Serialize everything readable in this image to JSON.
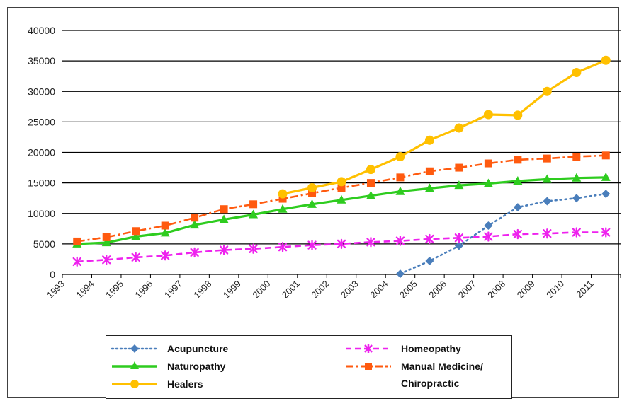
{
  "chart_data": {
    "type": "line",
    "title": "",
    "xlabel": "",
    "ylabel": "",
    "ylim": [
      0,
      40000
    ],
    "yticks": [
      "0",
      "5000",
      "10000",
      "15000",
      "20000",
      "25000",
      "30000",
      "35000",
      "40000"
    ],
    "categories": [
      "1993",
      "1994",
      "1995",
      "1996",
      "1997",
      "1998",
      "1999",
      "2000",
      "2001",
      "2002",
      "2003",
      "2004",
      "2005",
      "2006",
      "2007",
      "2008",
      "2009",
      "2010",
      "2011"
    ],
    "grid": "horizontal",
    "legend_position": "bottom",
    "series": [
      {
        "name": "Acupuncture",
        "color": "#4a7ebb",
        "dash": "dotted",
        "marker": "diamond",
        "values": [
          null,
          null,
          null,
          null,
          null,
          null,
          null,
          null,
          null,
          null,
          null,
          100,
          2200,
          4700,
          8000,
          11000,
          12000,
          12500,
          13200
        ]
      },
      {
        "name": "Naturopathy",
        "color": "#2ecc1f",
        "dash": "solid",
        "marker": "triangle",
        "values": [
          5000,
          5200,
          6200,
          6800,
          8100,
          9000,
          9800,
          10700,
          11500,
          12200,
          12900,
          13600,
          14100,
          14600,
          14900,
          15300,
          15600,
          15800,
          15900
        ]
      },
      {
        "name": "Healers",
        "color": "#ffc000",
        "dash": "solid",
        "marker": "circle",
        "values": [
          null,
          null,
          null,
          null,
          null,
          null,
          null,
          13200,
          14200,
          15200,
          17200,
          19300,
          22000,
          24000,
          26200,
          26100,
          30000,
          33100,
          35100
        ]
      },
      {
        "name": "Homeopathy",
        "color": "#ee22ee",
        "dash": "dashed",
        "marker": "star",
        "values": [
          2100,
          2400,
          2800,
          3100,
          3600,
          4000,
          4200,
          4500,
          4800,
          5000,
          5300,
          5500,
          5800,
          6000,
          6200,
          6600,
          6700,
          6900,
          6900
        ]
      },
      {
        "name": "Manual Medicine/\nChiropractic",
        "color": "#ff5a0f",
        "dash": "dashdot",
        "marker": "square",
        "values": [
          5400,
          6100,
          7100,
          8000,
          9300,
          10700,
          11500,
          12400,
          13300,
          14200,
          15000,
          15900,
          16900,
          17500,
          18200,
          18800,
          19000,
          19300,
          19500
        ]
      }
    ]
  },
  "legend": {
    "items": [
      {
        "label": "Acupuncture"
      },
      {
        "label": "Naturopathy"
      },
      {
        "label": "Healers"
      },
      {
        "label": "Homeopathy"
      },
      {
        "label_line1": "Manual Medicine/",
        "label_line2": "Chiropractic"
      }
    ]
  }
}
